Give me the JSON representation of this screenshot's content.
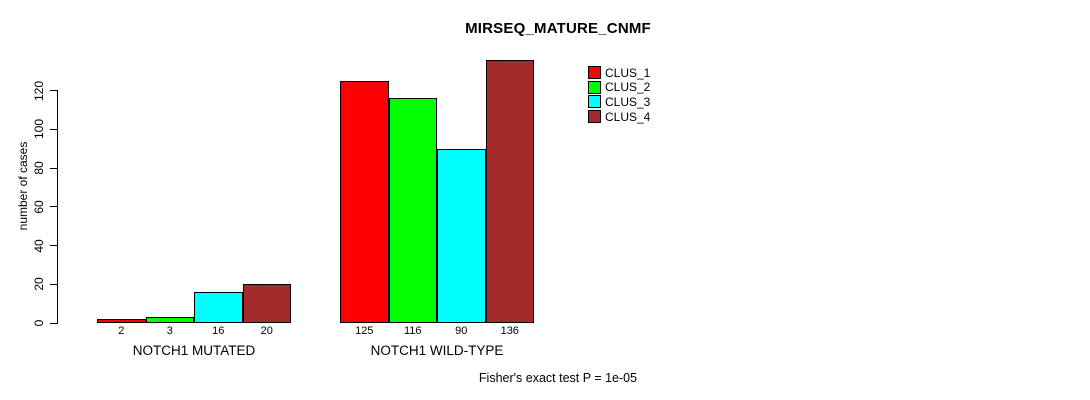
{
  "figure": {
    "background": "#ffffff",
    "axis_color": "#000000",
    "text_color": "#000000"
  },
  "chart_data": {
    "type": "bar",
    "title": "MIRSEQ_MATURE_CNMF",
    "ylabel": "number of cases",
    "xlabel": "",
    "ylim": [
      0,
      120
    ],
    "yticks": [
      0,
      20,
      40,
      60,
      80,
      100,
      120
    ],
    "grid": false,
    "categories": [
      "NOTCH1 MUTATED",
      "NOTCH1 WILD-TYPE"
    ],
    "series": [
      {
        "name": "CLUS_1",
        "color": "#ff0000",
        "values": [
          2,
          125
        ]
      },
      {
        "name": "CLUS_2",
        "color": "#00ff00",
        "values": [
          3,
          116
        ]
      },
      {
        "name": "CLUS_3",
        "color": "#00ffff",
        "values": [
          16,
          90
        ]
      },
      {
        "name": "CLUS_4",
        "color": "#a52a2a",
        "values": [
          20,
          136
        ]
      }
    ],
    "bar_value_labels": {
      "NOTCH1 MUTATED": [
        "2",
        "3",
        "16",
        "20"
      ],
      "NOTCH1 WILD-TYPE": [
        "125",
        "116",
        "90",
        "136"
      ]
    },
    "legend": {
      "position": "top-right",
      "entries": [
        "CLUS_1",
        "CLUS_2",
        "CLUS_3",
        "CLUS_4"
      ]
    },
    "footnote": "Fisher's exact test P = 1e-05"
  }
}
